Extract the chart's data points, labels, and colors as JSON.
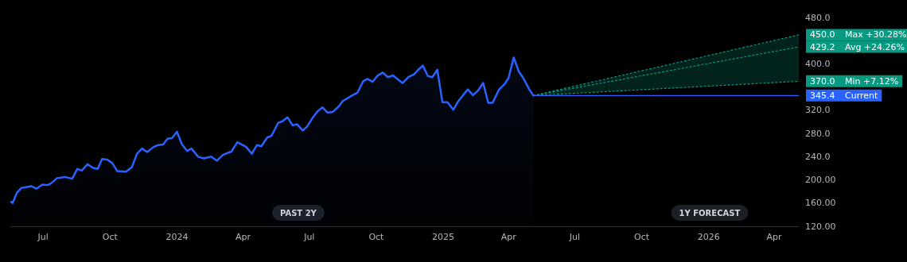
{
  "chart_data": {
    "type": "line",
    "xlim": [
      "2023-05-18",
      "2026-05-05"
    ],
    "xticks": [
      {
        "value": "2023-07-01",
        "label": "Jul"
      },
      {
        "value": "2023-10-01",
        "label": "Oct"
      },
      {
        "value": "2024-01-01",
        "label": "2024"
      },
      {
        "value": "2024-04-01",
        "label": "Apr"
      },
      {
        "value": "2024-07-01",
        "label": "Jul"
      },
      {
        "value": "2024-10-01",
        "label": "Oct"
      },
      {
        "value": "2025-01-01",
        "label": "2025"
      },
      {
        "value": "2025-04-01",
        "label": "Apr"
      },
      {
        "value": "2025-07-01",
        "label": "Jul"
      },
      {
        "value": "2025-10-01",
        "label": "Oct"
      },
      {
        "value": "2026-01-01",
        "label": "2026"
      },
      {
        "value": "2026-04-01",
        "label": "Apr"
      }
    ],
    "ylim": [
      120,
      480
    ],
    "yticks": [
      {
        "value": 120,
        "label": "120.00"
      },
      {
        "value": 160,
        "label": "160.00"
      },
      {
        "value": 200,
        "label": "200.00"
      },
      {
        "value": 240,
        "label": "240.0"
      },
      {
        "value": 280,
        "label": "280.0"
      },
      {
        "value": 320,
        "label": "320.0"
      },
      {
        "value": 400,
        "label": "400.0"
      },
      {
        "value": 480,
        "label": "480.0"
      }
    ],
    "grid": false,
    "legend": "right",
    "marker": "none",
    "series": [
      {
        "type": "area",
        "color": "#2962ff",
        "line_style": "solid",
        "x": [
          "2023-05-18",
          "2023-05-20",
          "2023-05-26",
          "2023-06-01",
          "2023-06-15",
          "2023-06-22",
          "2023-06-30",
          "2023-07-07",
          "2023-07-12",
          "2023-07-20",
          "2023-07-31",
          "2023-08-10",
          "2023-08-17",
          "2023-08-23",
          "2023-08-31",
          "2023-09-07",
          "2023-09-14",
          "2023-09-20",
          "2023-09-27",
          "2023-10-04",
          "2023-10-11",
          "2023-10-23",
          "2023-10-31",
          "2023-11-07",
          "2023-11-14",
          "2023-11-21",
          "2023-11-29",
          "2023-12-06",
          "2023-12-13",
          "2023-12-19",
          "2023-12-25",
          "2024-01-01",
          "2024-01-08",
          "2024-01-15",
          "2024-01-21",
          "2024-01-30",
          "2024-02-07",
          "2024-02-17",
          "2024-02-25",
          "2024-03-04",
          "2024-03-16",
          "2024-03-24",
          "2024-04-05",
          "2024-04-13",
          "2024-04-20",
          "2024-04-26",
          "2024-05-04",
          "2024-05-10",
          "2024-05-19",
          "2024-05-25",
          "2024-06-01",
          "2024-06-08",
          "2024-06-14",
          "2024-06-22",
          "2024-06-28",
          "2024-07-06",
          "2024-07-13",
          "2024-07-19",
          "2024-07-26",
          "2024-08-02",
          "2024-08-10",
          "2024-08-16",
          "2024-08-28",
          "2024-09-05",
          "2024-09-13",
          "2024-09-19",
          "2024-09-26",
          "2024-10-03",
          "2024-10-10",
          "2024-10-17",
          "2024-10-24",
          "2024-11-06",
          "2024-11-15",
          "2024-11-22",
          "2024-11-27",
          "2024-12-04",
          "2024-12-11",
          "2024-12-17",
          "2024-12-24",
          "2024-12-31",
          "2025-01-07",
          "2025-01-15",
          "2025-01-22",
          "2025-01-29",
          "2025-02-04",
          "2025-02-11",
          "2025-02-18",
          "2025-02-25",
          "2025-03-04",
          "2025-03-10",
          "2025-03-19",
          "2025-03-27",
          "2025-04-01",
          "2025-04-08",
          "2025-04-15",
          "2025-04-21",
          "2025-04-29",
          "2025-05-05"
        ],
        "values": [
          162,
          160,
          178,
          186,
          189,
          185,
          192,
          191,
          194,
          203,
          205,
          202,
          219,
          216,
          227,
          221,
          219,
          236,
          235,
          229,
          215,
          214,
          222,
          245,
          254,
          248,
          256,
          260,
          261,
          271,
          272,
          283,
          261,
          250,
          254,
          240,
          237,
          240,
          233,
          243,
          249,
          265,
          257,
          245,
          260,
          258,
          273,
          276,
          298,
          301,
          308,
          294,
          296,
          285,
          292,
          308,
          319,
          325,
          316,
          317,
          326,
          336,
          345,
          350,
          370,
          374,
          369,
          380,
          385,
          377,
          380,
          367,
          378,
          382,
          389,
          397,
          379,
          377,
          390,
          334,
          334,
          321,
          336,
          347,
          356,
          346,
          354,
          367,
          333,
          333,
          356,
          366,
          376,
          411,
          387,
          376,
          357,
          345.4
        ]
      },
      {
        "name": "Max +30.28%",
        "color": "#089981",
        "line_style": "dotted",
        "x": [
          "2025-05-05",
          "2026-05-05"
        ],
        "values": [
          345.4,
          450
        ],
        "value_labels": [
          null,
          "450.0"
        ]
      },
      {
        "name": "Avg +24.26%",
        "color": "#089981",
        "line_style": "dotted",
        "x": [
          "2025-05-05",
          "2026-05-05"
        ],
        "values": [
          345.4,
          429.2
        ],
        "value_labels": [
          null,
          "429.2"
        ],
        "lower": [
          345.4,
          370
        ],
        "upper": [
          345.4,
          450
        ]
      },
      {
        "name": "Min +7.12%",
        "color": "#089981",
        "line_style": "dotted",
        "x": [
          "2025-05-05",
          "2026-05-05"
        ],
        "values": [
          345.4,
          370
        ],
        "value_labels": [
          null,
          "370.0"
        ]
      },
      {
        "name": "Current",
        "color": "#2962ff",
        "line_style": "solid",
        "x": [
          "2025-05-05",
          "2026-05-05"
        ],
        "values": [
          345.4,
          345.4
        ],
        "value_labels": [
          null,
          "345.4"
        ]
      }
    ],
    "annotations": [
      "PAST 2Y",
      "1Y FORECAST"
    ]
  }
}
